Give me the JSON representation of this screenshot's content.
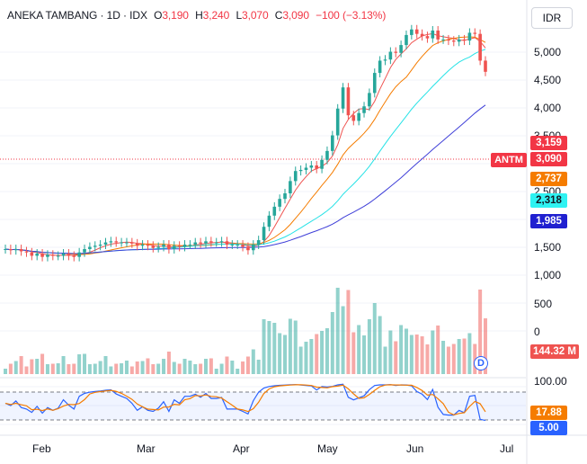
{
  "header": {
    "title": "ANEKA TAMBANG · 1D · IDX",
    "ohlc": [
      {
        "k": "O",
        "v": "3,190"
      },
      {
        "k": "H",
        "v": "3,240"
      },
      {
        "k": "L",
        "v": "3,070"
      },
      {
        "k": "C",
        "v": "3,090"
      }
    ],
    "change": "−100 (−3.13%)"
  },
  "currency": "IDR",
  "symbol_tag": "ANTM",
  "price_axis": [
    "5,000",
    "4,500",
    "4,000",
    "3,500",
    "3,000",
    "2,500",
    "2,000",
    "1,500"
  ],
  "volume_axis": [
    "1,000",
    "500",
    "0"
  ],
  "osc_axis": [
    "100.00"
  ],
  "badges": {
    "ma_fast": "3,159",
    "last_price": "3,090",
    "ma_mid": "2,737",
    "ma_slow": "2,318",
    "ma_long": "1,985",
    "volume": "144.32 M",
    "stoch_d": "17.88",
    "stoch_k": "5.00"
  },
  "x_axis": [
    "Feb",
    "Mar",
    "Apr",
    "May",
    "Jun",
    "Jul"
  ],
  "dividend_icon": "D",
  "colors": {
    "up": "#26a69a",
    "down": "#ef5350",
    "ma_fast": "#ef5350",
    "ma_mid": "#f57c00",
    "ma_slow": "#26e2e6",
    "ma_long": "#3f3fd8",
    "stoch_k": "#2962ff",
    "stoch_d": "#f57c00"
  },
  "chart_data": {
    "type": "candlestick",
    "price_axis_range": [
      1000,
      5000
    ],
    "candles_close_approx": [
      1500,
      1490,
      1500,
      1480,
      1470,
      1440,
      1460,
      1430,
      1450,
      1440,
      1440,
      1460,
      1440,
      1430,
      1470,
      1500,
      1520,
      1530,
      1540,
      1560,
      1570,
      1560,
      1560,
      1560,
      1550,
      1530,
      1540,
      1530,
      1510,
      1520,
      1540,
      1500,
      1530,
      1520,
      1540,
      1540,
      1560,
      1550,
      1570,
      1560,
      1560,
      1570,
      1540,
      1540,
      1540,
      1520,
      1490,
      1540,
      1580,
      1700,
      1800,
      1880,
      1950,
      2000,
      2110,
      2200,
      2210,
      2230,
      2250,
      2220,
      2300,
      2380,
      2520,
      2760,
      2950,
      2700,
      2650,
      2720,
      2780,
      2900,
      3080,
      3190,
      3200,
      3270,
      3260,
      3330,
      3420,
      3470,
      3430,
      3410,
      3390,
      3460,
      3380,
      3380,
      3370,
      3360,
      3380,
      3370,
      3440,
      3430,
      3190,
      3090
    ],
    "moving_averages": [
      "3,159",
      "2,737",
      "2,318",
      "1,985"
    ],
    "last_close": 3090,
    "volume_last": "144.32 M",
    "stochastic": {
      "k": 5.0,
      "d": 17.88
    }
  }
}
